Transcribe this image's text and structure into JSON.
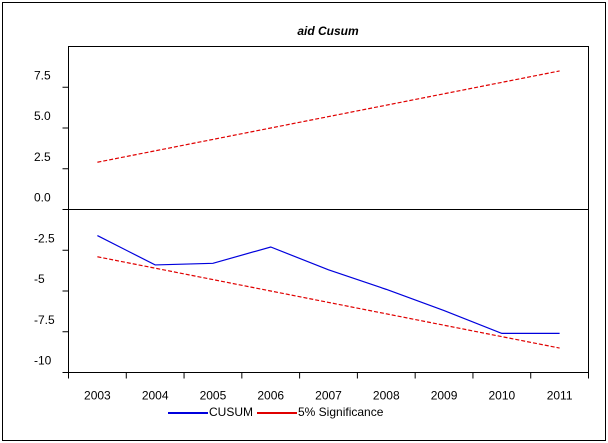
{
  "chart_data": {
    "type": "line",
    "title": "aid Cusum",
    "categories": [
      "2003",
      "2004",
      "2005",
      "2006",
      "2007",
      "2008",
      "2009",
      "2010",
      "2011"
    ],
    "series": [
      {
        "name": "CUSUM",
        "color": "#0000dd",
        "dashed": false,
        "values": [
          -1.6,
          -3.4,
          -3.3,
          -2.3,
          -3.7,
          -4.9,
          -6.2,
          -7.6,
          -7.6
        ]
      },
      {
        "name": "5% Significance",
        "color": "#e00000",
        "dashed": true,
        "values": [
          2.9,
          3.6,
          4.3,
          5.0,
          5.7,
          6.4,
          7.1,
          7.8,
          8.5
        ]
      },
      {
        "color": "#e00000",
        "dashed": true,
        "values": [
          -2.9,
          -3.6,
          -4.3,
          -5.0,
          -5.7,
          -6.4,
          -7.1,
          -7.8,
          -8.5
        ]
      }
    ],
    "ylim": [
      -10,
      10
    ],
    "yticks": [
      -10,
      -7.5,
      -5,
      -2.5,
      {
        "value": 0,
        "label": "0.0"
      },
      2.5,
      {
        "value": 5,
        "label": "5.0"
      },
      7.5
    ],
    "zero_line": true,
    "grid": false
  }
}
